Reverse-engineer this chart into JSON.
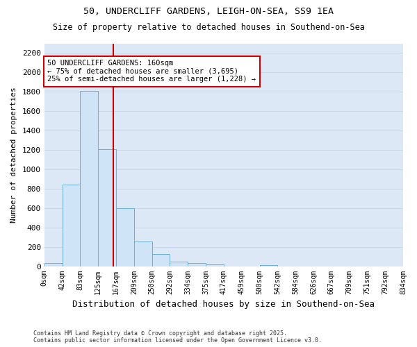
{
  "title1": "50, UNDERCLIFF GARDENS, LEIGH-ON-SEA, SS9 1EA",
  "title2": "Size of property relative to detached houses in Southend-on-Sea",
  "xlabel": "Distribution of detached houses by size in Southend-on-Sea",
  "ylabel": "Number of detached properties",
  "footnote": "Contains HM Land Registry data © Crown copyright and database right 2025.\nContains public sector information licensed under the Open Government Licence v3.0.",
  "bin_labels": [
    "0sqm",
    "42sqm",
    "83sqm",
    "125sqm",
    "167sqm",
    "209sqm",
    "250sqm",
    "292sqm",
    "334sqm",
    "375sqm",
    "417sqm",
    "459sqm",
    "500sqm",
    "542sqm",
    "584sqm",
    "626sqm",
    "667sqm",
    "709sqm",
    "751sqm",
    "792sqm",
    "834sqm"
  ],
  "bar_heights": [
    30,
    840,
    1810,
    1210,
    600,
    255,
    125,
    50,
    30,
    20,
    0,
    0,
    10,
    0,
    0,
    0,
    0,
    0,
    0,
    0
  ],
  "bar_color": "#d0e4f7",
  "bar_edge_color": "#6baed6",
  "grid_color": "#c8d8e8",
  "bg_color": "#dce8f5",
  "fig_bg_color": "#ffffff",
  "red_line_x": 3.84,
  "annotation_text": "50 UNDERCLIFF GARDENS: 160sqm\n← 75% of detached houses are smaller (3,695)\n25% of semi-detached houses are larger (1,228) →",
  "annotation_box_color": "#cc0000",
  "red_line_color": "#cc0000",
  "ylim": [
    0,
    2300
  ],
  "yticks": [
    0,
    200,
    400,
    600,
    800,
    1000,
    1200,
    1400,
    1600,
    1800,
    2000,
    2200
  ]
}
